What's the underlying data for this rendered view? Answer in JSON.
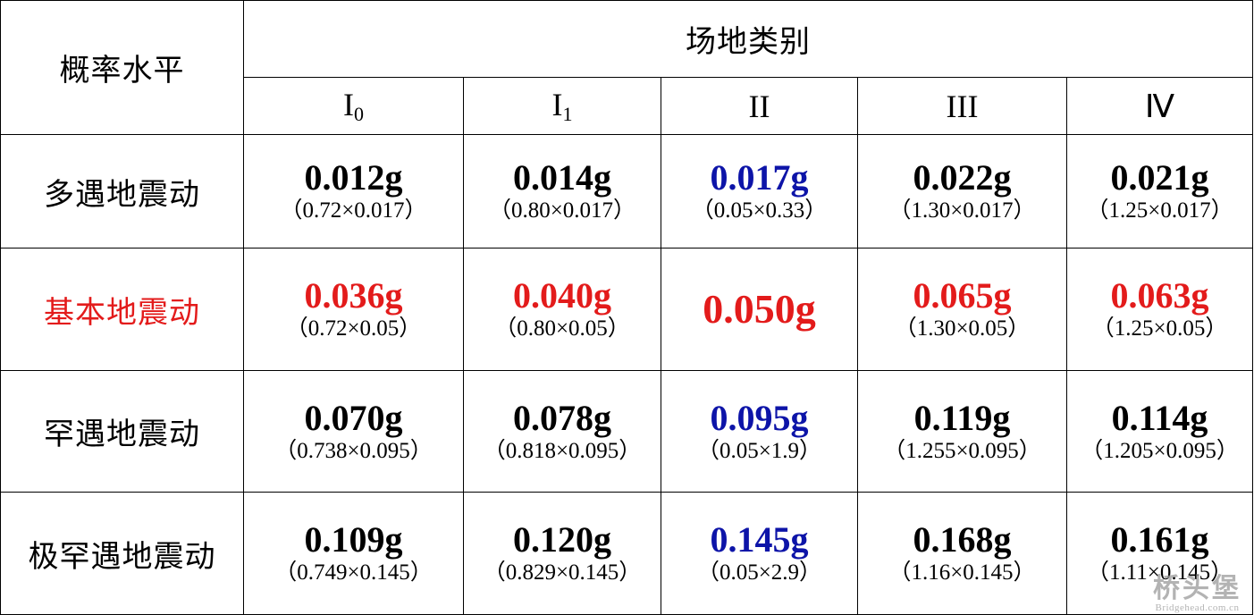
{
  "header": {
    "row_label": "概率水平",
    "group_label": "场地类别",
    "columns": [
      {
        "main": "I",
        "sub": "0"
      },
      {
        "main": "I",
        "sub": "1"
      },
      {
        "main": "II",
        "sub": ""
      },
      {
        "main": "III",
        "sub": ""
      },
      {
        "main": "Ⅳ",
        "sub": ""
      }
    ]
  },
  "colors": {
    "black": "#000000",
    "red": "#e31b1b",
    "blue": "#0d14a8"
  },
  "rows": [
    {
      "label": "多遇地震动",
      "label_color": "black",
      "cells": [
        {
          "value": "0.012g",
          "expr": "（0.72×0.017）",
          "color": "black"
        },
        {
          "value": "0.014g",
          "expr": "（0.80×0.017）",
          "color": "black"
        },
        {
          "value": "0.017g",
          "expr": "（0.05×0.33）",
          "color": "blue"
        },
        {
          "value": "0.022g",
          "expr": "（1.30×0.017）",
          "color": "black"
        },
        {
          "value": "0.021g",
          "expr": "（1.25×0.017）",
          "color": "black"
        }
      ]
    },
    {
      "label": "基本地震动",
      "label_color": "red",
      "cells": [
        {
          "value": "0.036g",
          "expr": "（0.72×0.05）",
          "color": "red"
        },
        {
          "value": "0.040g",
          "expr": "（0.80×0.05）",
          "color": "red"
        },
        {
          "value": "0.050g",
          "expr": "",
          "color": "red"
        },
        {
          "value": "0.065g",
          "expr": "（1.30×0.05）",
          "color": "red"
        },
        {
          "value": "0.063g",
          "expr": "（1.25×0.05）",
          "color": "red"
        }
      ]
    },
    {
      "label": "罕遇地震动",
      "label_color": "black",
      "cells": [
        {
          "value": "0.070g",
          "expr": "（0.738×0.095）",
          "color": "black"
        },
        {
          "value": "0.078g",
          "expr": "（0.818×0.095）",
          "color": "black"
        },
        {
          "value": "0.095g",
          "expr": "（0.05×1.9）",
          "color": "blue"
        },
        {
          "value": "0.119g",
          "expr": "（1.255×0.095）",
          "color": "black"
        },
        {
          "value": "0.114g",
          "expr": "（1.205×0.095）",
          "color": "black"
        }
      ]
    },
    {
      "label": "极罕遇地震动",
      "label_color": "black",
      "cells": [
        {
          "value": "0.109g",
          "expr": "（0.749×0.145）",
          "color": "black"
        },
        {
          "value": "0.120g",
          "expr": "（0.829×0.145）",
          "color": "black"
        },
        {
          "value": "0.145g",
          "expr": "（0.05×2.9）",
          "color": "blue"
        },
        {
          "value": "0.168g",
          "expr": "（1.16×0.145）",
          "color": "black"
        },
        {
          "value": "0.161g",
          "expr": "（1.11×0.145）",
          "color": "black"
        }
      ]
    }
  ],
  "watermark": {
    "logo": "桥头堡",
    "url": "Bridgehead.com.cn"
  }
}
